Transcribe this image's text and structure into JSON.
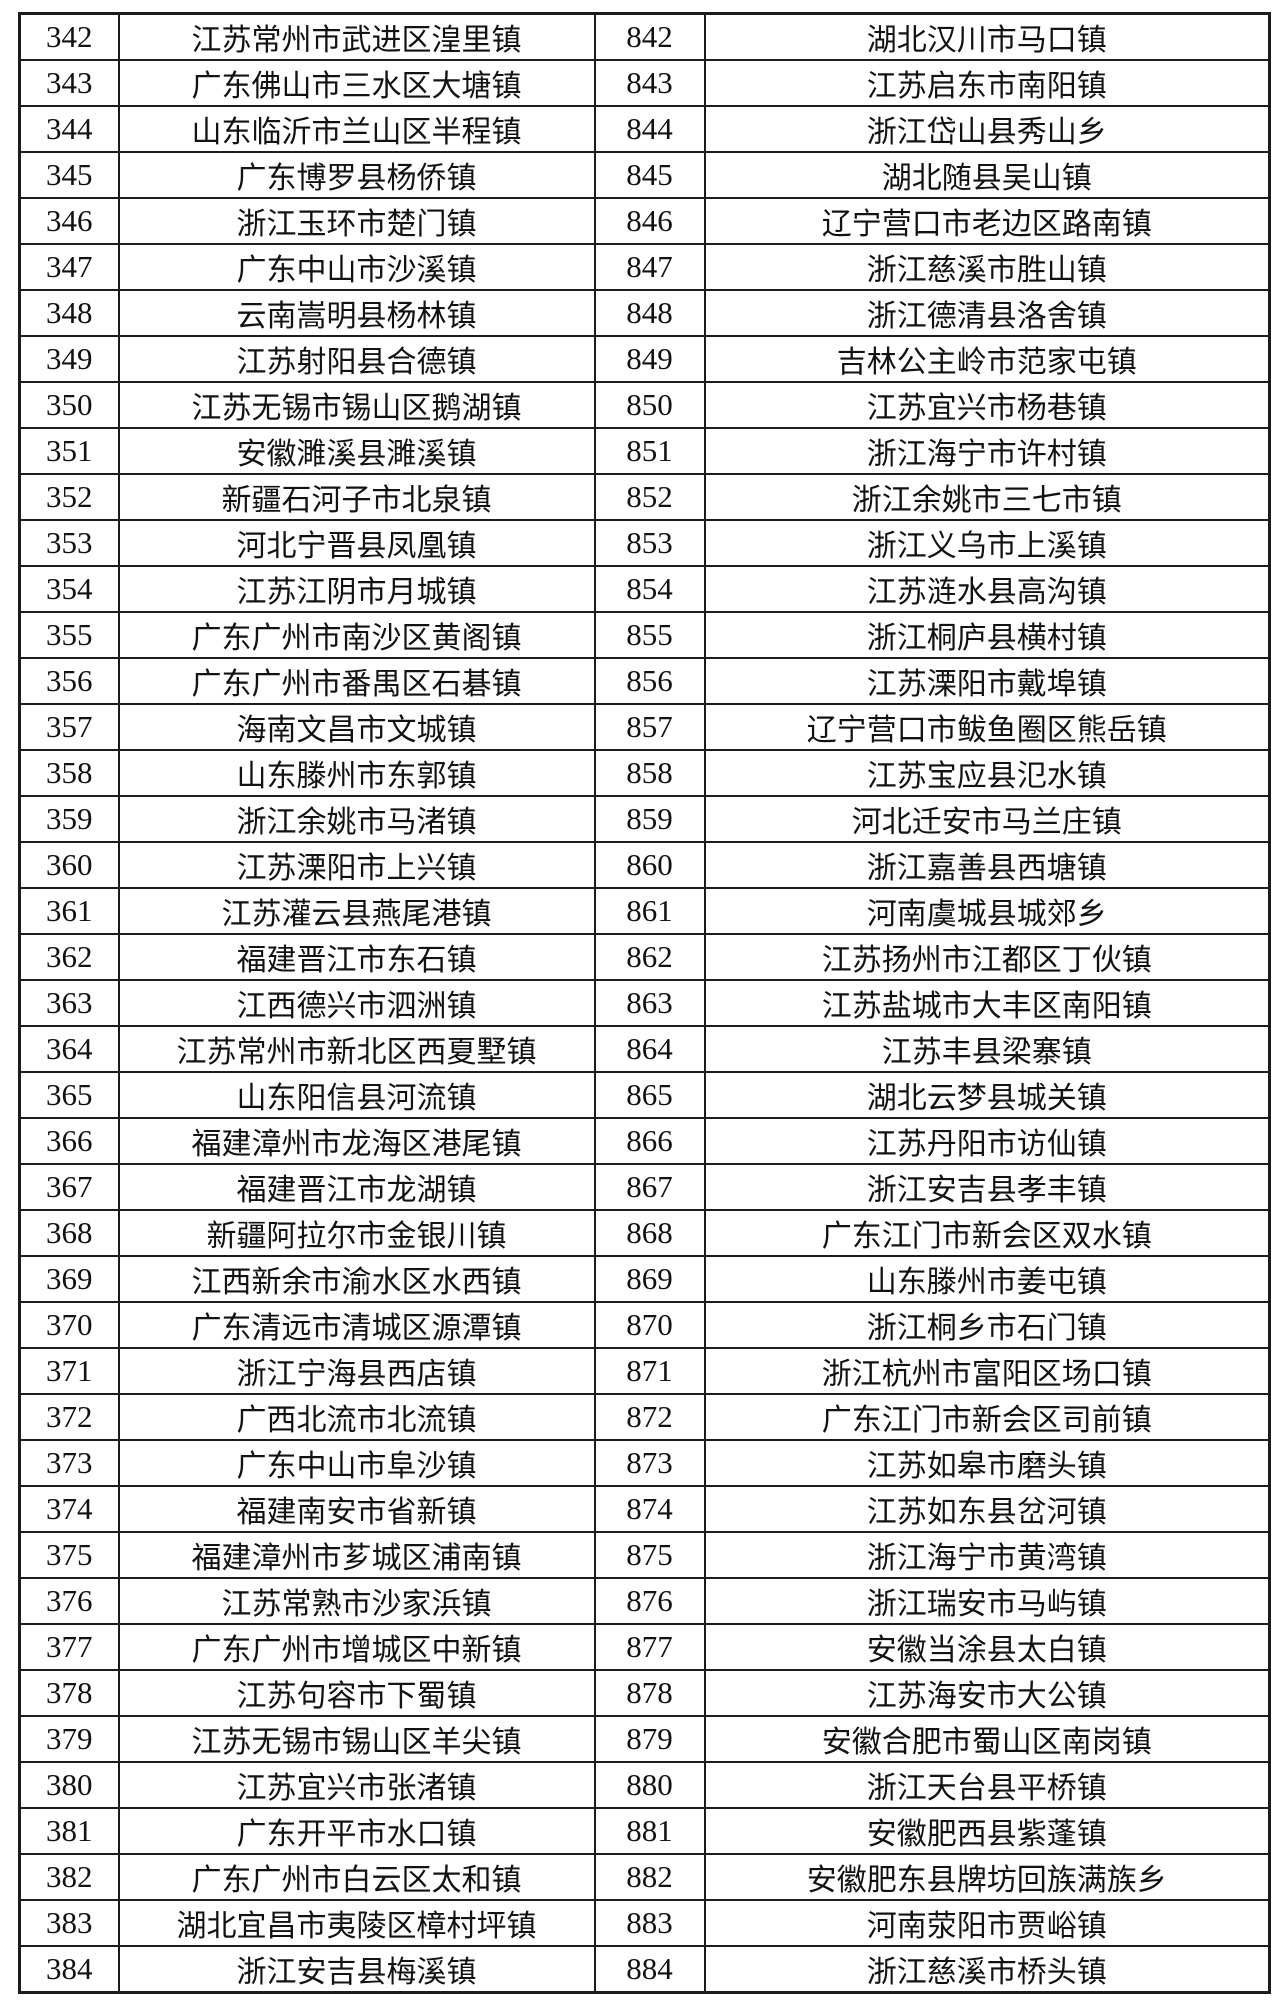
{
  "colors": {
    "background": "#ffffff",
    "border": "#1c1c1c",
    "text": "#121212"
  },
  "table": {
    "description": "two-column ranked list of Chinese towns",
    "rows": [
      {
        "left_rank": "342",
        "left_town": "江苏常州市武进区湟里镇",
        "right_rank": "842",
        "right_town": "湖北汉川市马口镇"
      },
      {
        "left_rank": "343",
        "left_town": "广东佛山市三水区大塘镇",
        "right_rank": "843",
        "right_town": "江苏启东市南阳镇"
      },
      {
        "left_rank": "344",
        "left_town": "山东临沂市兰山区半程镇",
        "right_rank": "844",
        "right_town": "浙江岱山县秀山乡"
      },
      {
        "left_rank": "345",
        "left_town": "广东博罗县杨侨镇",
        "right_rank": "845",
        "right_town": "湖北随县吴山镇"
      },
      {
        "left_rank": "346",
        "left_town": "浙江玉环市楚门镇",
        "right_rank": "846",
        "right_town": "辽宁营口市老边区路南镇"
      },
      {
        "left_rank": "347",
        "left_town": "广东中山市沙溪镇",
        "right_rank": "847",
        "right_town": "浙江慈溪市胜山镇"
      },
      {
        "left_rank": "348",
        "left_town": "云南嵩明县杨林镇",
        "right_rank": "848",
        "right_town": "浙江德清县洛舍镇"
      },
      {
        "left_rank": "349",
        "left_town": "江苏射阳县合德镇",
        "right_rank": "849",
        "right_town": "吉林公主岭市范家屯镇"
      },
      {
        "left_rank": "350",
        "left_town": "江苏无锡市锡山区鹅湖镇",
        "right_rank": "850",
        "right_town": "江苏宜兴市杨巷镇"
      },
      {
        "left_rank": "351",
        "left_town": "安徽濉溪县濉溪镇",
        "right_rank": "851",
        "right_town": "浙江海宁市许村镇"
      },
      {
        "left_rank": "352",
        "left_town": "新疆石河子市北泉镇",
        "right_rank": "852",
        "right_town": "浙江余姚市三七市镇"
      },
      {
        "left_rank": "353",
        "left_town": "河北宁晋县凤凰镇",
        "right_rank": "853",
        "right_town": "浙江义乌市上溪镇"
      },
      {
        "left_rank": "354",
        "left_town": "江苏江阴市月城镇",
        "right_rank": "854",
        "right_town": "江苏涟水县高沟镇"
      },
      {
        "left_rank": "355",
        "left_town": "广东广州市南沙区黄阁镇",
        "right_rank": "855",
        "right_town": "浙江桐庐县横村镇"
      },
      {
        "left_rank": "356",
        "left_town": "广东广州市番禺区石碁镇",
        "right_rank": "856",
        "right_town": "江苏溧阳市戴埠镇"
      },
      {
        "left_rank": "357",
        "left_town": "海南文昌市文城镇",
        "right_rank": "857",
        "right_town": "辽宁营口市鲅鱼圈区熊岳镇"
      },
      {
        "left_rank": "358",
        "left_town": "山东滕州市东郭镇",
        "right_rank": "858",
        "right_town": "江苏宝应县氾水镇"
      },
      {
        "left_rank": "359",
        "left_town": "浙江余姚市马渚镇",
        "right_rank": "859",
        "right_town": "河北迁安市马兰庄镇"
      },
      {
        "left_rank": "360",
        "left_town": "江苏溧阳市上兴镇",
        "right_rank": "860",
        "right_town": "浙江嘉善县西塘镇"
      },
      {
        "left_rank": "361",
        "left_town": "江苏灌云县燕尾港镇",
        "right_rank": "861",
        "right_town": "河南虞城县城郊乡"
      },
      {
        "left_rank": "362",
        "left_town": "福建晋江市东石镇",
        "right_rank": "862",
        "right_town": "江苏扬州市江都区丁伙镇"
      },
      {
        "left_rank": "363",
        "left_town": "江西德兴市泗洲镇",
        "right_rank": "863",
        "right_town": "江苏盐城市大丰区南阳镇"
      },
      {
        "left_rank": "364",
        "left_town": "江苏常州市新北区西夏墅镇",
        "right_rank": "864",
        "right_town": "江苏丰县梁寨镇"
      },
      {
        "left_rank": "365",
        "left_town": "山东阳信县河流镇",
        "right_rank": "865",
        "right_town": "湖北云梦县城关镇"
      },
      {
        "left_rank": "366",
        "left_town": "福建漳州市龙海区港尾镇",
        "right_rank": "866",
        "right_town": "江苏丹阳市访仙镇"
      },
      {
        "left_rank": "367",
        "left_town": "福建晋江市龙湖镇",
        "right_rank": "867",
        "right_town": "浙江安吉县孝丰镇"
      },
      {
        "left_rank": "368",
        "left_town": "新疆阿拉尔市金银川镇",
        "right_rank": "868",
        "right_town": "广东江门市新会区双水镇"
      },
      {
        "left_rank": "369",
        "left_town": "江西新余市渝水区水西镇",
        "right_rank": "869",
        "right_town": "山东滕州市姜屯镇"
      },
      {
        "left_rank": "370",
        "left_town": "广东清远市清城区源潭镇",
        "right_rank": "870",
        "right_town": "浙江桐乡市石门镇"
      },
      {
        "left_rank": "371",
        "left_town": "浙江宁海县西店镇",
        "right_rank": "871",
        "right_town": "浙江杭州市富阳区场口镇"
      },
      {
        "left_rank": "372",
        "left_town": "广西北流市北流镇",
        "right_rank": "872",
        "right_town": "广东江门市新会区司前镇"
      },
      {
        "left_rank": "373",
        "left_town": "广东中山市阜沙镇",
        "right_rank": "873",
        "right_town": "江苏如皋市磨头镇"
      },
      {
        "left_rank": "374",
        "left_town": "福建南安市省新镇",
        "right_rank": "874",
        "right_town": "江苏如东县岔河镇"
      },
      {
        "left_rank": "375",
        "left_town": "福建漳州市芗城区浦南镇",
        "right_rank": "875",
        "right_town": "浙江海宁市黄湾镇"
      },
      {
        "left_rank": "376",
        "left_town": "江苏常熟市沙家浜镇",
        "right_rank": "876",
        "right_town": "浙江瑞安市马屿镇"
      },
      {
        "left_rank": "377",
        "left_town": "广东广州市增城区中新镇",
        "right_rank": "877",
        "right_town": "安徽当涂县太白镇"
      },
      {
        "left_rank": "378",
        "left_town": "江苏句容市下蜀镇",
        "right_rank": "878",
        "right_town": "江苏海安市大公镇"
      },
      {
        "left_rank": "379",
        "left_town": "江苏无锡市锡山区羊尖镇",
        "right_rank": "879",
        "right_town": "安徽合肥市蜀山区南岗镇"
      },
      {
        "left_rank": "380",
        "left_town": "江苏宜兴市张渚镇",
        "right_rank": "880",
        "right_town": "浙江天台县平桥镇"
      },
      {
        "left_rank": "381",
        "left_town": "广东开平市水口镇",
        "right_rank": "881",
        "right_town": "安徽肥西县紫蓬镇"
      },
      {
        "left_rank": "382",
        "left_town": "广东广州市白云区太和镇",
        "right_rank": "882",
        "right_town": "安徽肥东县牌坊回族满族乡"
      },
      {
        "left_rank": "383",
        "left_town": "湖北宜昌市夷陵区樟村坪镇",
        "right_rank": "883",
        "right_town": "河南荥阳市贾峪镇"
      },
      {
        "left_rank": "384",
        "left_town": "浙江安吉县梅溪镇",
        "right_rank": "884",
        "right_town": "浙江慈溪市桥头镇"
      }
    ]
  }
}
